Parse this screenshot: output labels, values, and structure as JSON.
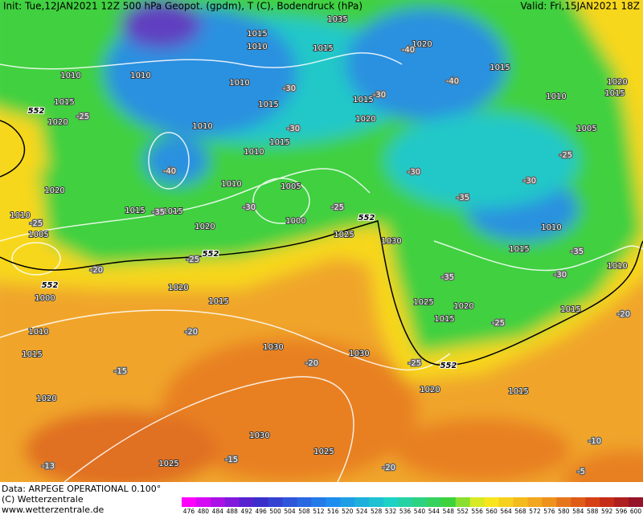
{
  "header": {
    "init": "Init: Tue,12JAN2021  12Z  500 hPa Geopot. (gpdm), T (C), Bodendruck (hPa)",
    "valid": "Valid: Fri,15JAN2021  18Z"
  },
  "footer": {
    "data": "Data: ARPEGE OPERATIONAL 0.100°",
    "copyright": "(C) Wetterzentrale",
    "url": "www.wetterzentrale.de"
  },
  "colorbar": {
    "labels": [
      476,
      480,
      484,
      488,
      492,
      496,
      500,
      504,
      508,
      512,
      516,
      520,
      524,
      528,
      532,
      536,
      540,
      544,
      548,
      552,
      556,
      560,
      564,
      568,
      572,
      576,
      580,
      584,
      588,
      592,
      596,
      600
    ]
  },
  "map": {
    "pressure_labels": [
      "1035",
      "1015",
      "1010",
      "1015",
      "1020",
      "1015",
      "1010",
      "1010",
      "1010",
      "1015",
      "1015",
      "1015",
      "1010",
      "1020",
      "1015",
      "1020",
      "1010",
      "1020",
      "1015",
      "1010",
      "1005",
      "1010",
      "1005",
      "1020",
      "1015",
      "1015",
      "1010",
      "1000",
      "1005",
      "1020",
      "1025",
      "1030",
      "1015",
      "1010",
      "1010",
      "1020",
      "1000",
      "1015",
      "1010",
      "1025",
      "1020",
      "1015",
      "1015",
      "1015",
      "1030",
      "1030",
      "1020",
      "1020",
      "1015",
      "1030",
      "1025",
      "1025"
    ],
    "temperature_labels": [
      "-40",
      "-40",
      "-30",
      "-30",
      "-25",
      "-30",
      "-40",
      "-30",
      "-25",
      "-30",
      "-35",
      "-30",
      "-25",
      "-35",
      "-25",
      "-25",
      "-20",
      "-35",
      "-30",
      "-35",
      "-25",
      "-20",
      "-20",
      "-15",
      "-20",
      "-25",
      "-15",
      "-13",
      "-10",
      "-20",
      "-5"
    ],
    "contour_552_labels": [
      "552",
      "552",
      "552",
      "552",
      "552"
    ]
  }
}
